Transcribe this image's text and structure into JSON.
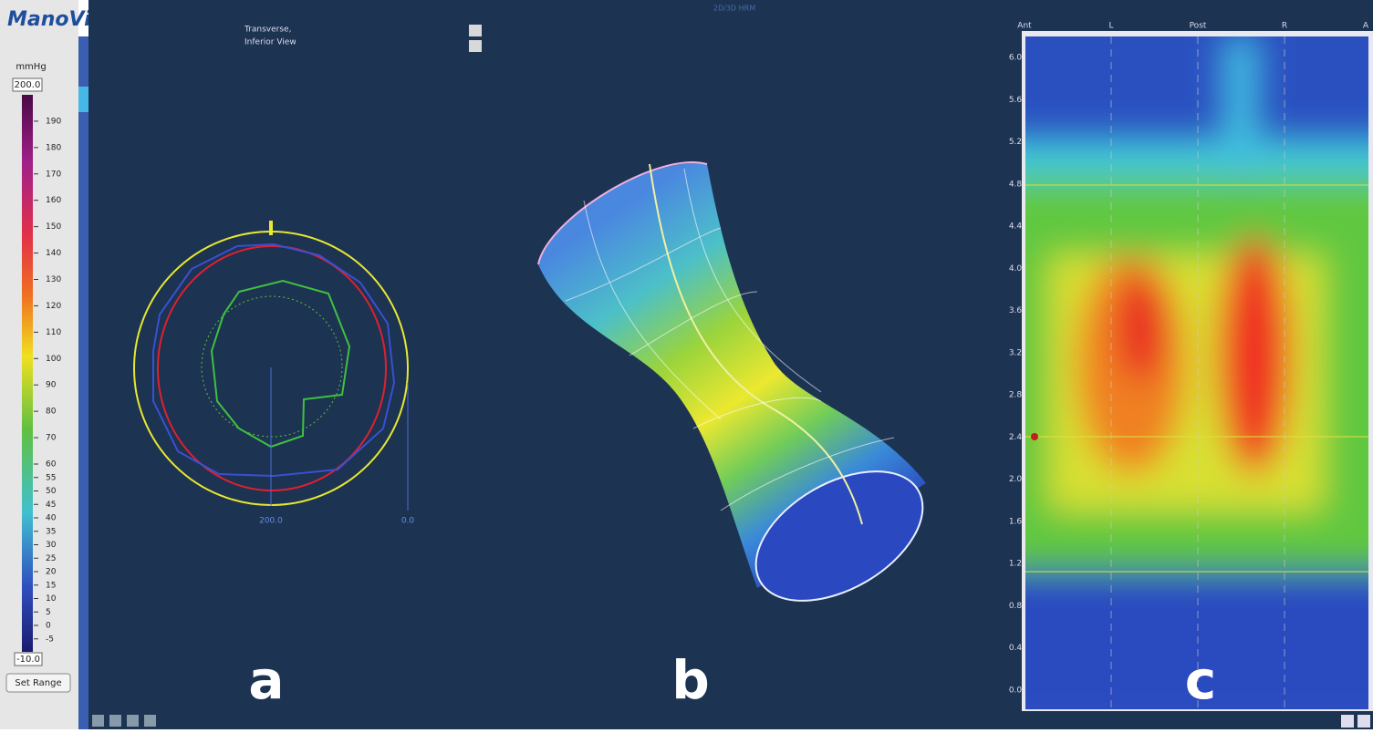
{
  "app": {
    "logo": "ManoVi",
    "title": "2D/3D HRM"
  },
  "scale": {
    "unit": "mmHg",
    "max": "200.0",
    "min": "-10.0",
    "ticks": [
      190,
      180,
      170,
      160,
      150,
      140,
      130,
      120,
      110,
      100,
      90,
      80,
      70,
      60,
      55,
      50,
      45,
      40,
      35,
      30,
      25,
      20,
      15,
      10,
      5,
      0,
      -5
    ],
    "button": "Set Range"
  },
  "view": {
    "lines": [
      "Transverse,",
      "Inferior View"
    ]
  },
  "panel_a": {
    "letter": "a",
    "radial_labels": [
      "200.0",
      "0.0"
    ]
  },
  "panel_b": {
    "letter": "b"
  },
  "panel_c": {
    "letter": "c",
    "x_labels": [
      "Ant",
      "L",
      "Post",
      "R",
      "A"
    ],
    "y_labels": [
      "6.0",
      "5.6",
      "5.2",
      "4.8",
      "4.4",
      "4.0",
      "3.6",
      "3.2",
      "2.8",
      "2.4",
      "2.0",
      "1.6",
      "1.2",
      "0.8",
      "0.4",
      "0.0"
    ]
  }
}
